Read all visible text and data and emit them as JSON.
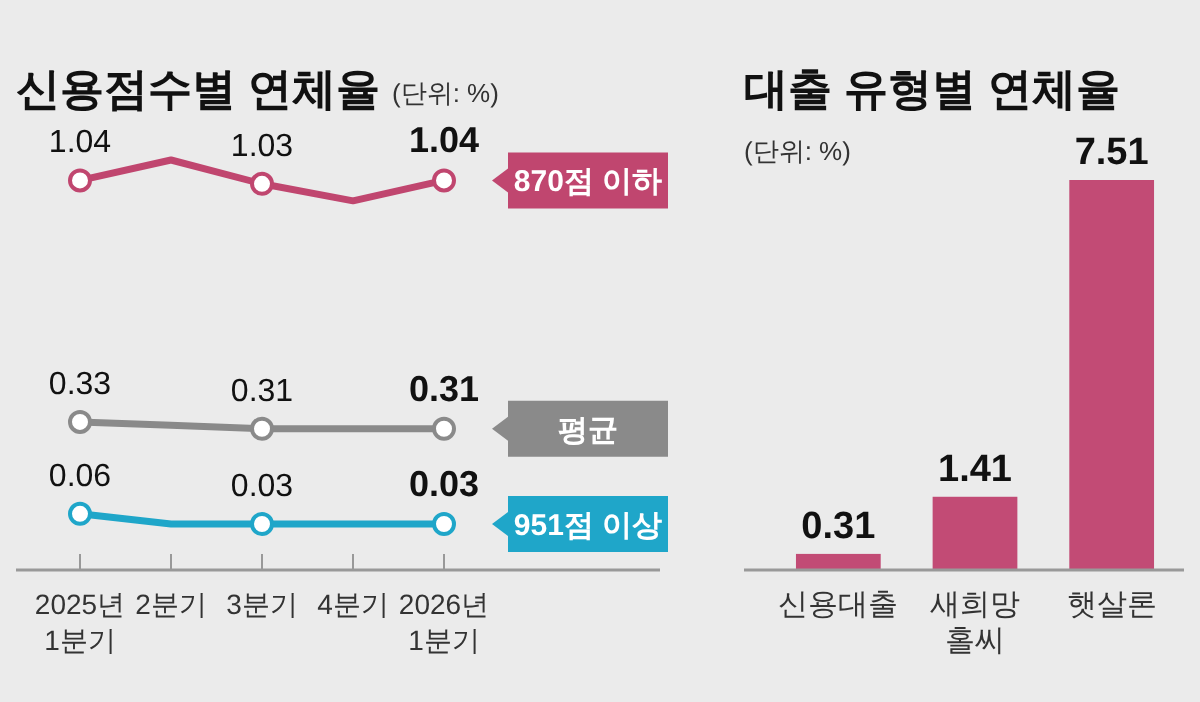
{
  "chart_data": [
    {
      "type": "line",
      "title": "신용점수별 연체율",
      "subtitle": "(단위: %)",
      "categories": [
        "2025년 1분기",
        "2분기",
        "3분기",
        "4분기",
        "2026년 1분기"
      ],
      "marker": "circle",
      "legend": "right",
      "series": [
        {
          "name": "870점 이하",
          "color": "#c0466f",
          "values": [
            1.04,
            1.1,
            1.03,
            0.98,
            1.04
          ],
          "value_labels": [
            "1.04",
            null,
            "1.03",
            null,
            "1.04"
          ]
        },
        {
          "name": "평균",
          "color": "#8a8a8a",
          "values": [
            0.33,
            0.32,
            0.31,
            0.31,
            0.31
          ],
          "value_labels": [
            "0.33",
            null,
            "0.31",
            null,
            "0.31"
          ]
        },
        {
          "name": "951점 이상",
          "color": "#1fa6c9",
          "values": [
            0.06,
            0.03,
            0.03,
            0.03,
            0.03
          ],
          "value_labels": [
            "0.06",
            null,
            "0.03",
            null,
            "0.03"
          ]
        }
      ]
    },
    {
      "type": "bar",
      "title": "대출 유형별 연체율",
      "subtitle": "(단위: %)",
      "categories": [
        "신용대출",
        "새희망 홀씨",
        "햇살론"
      ],
      "values": [
        0.31,
        1.41,
        7.51
      ],
      "color": "#c24b75",
      "data_labels": true
    }
  ]
}
